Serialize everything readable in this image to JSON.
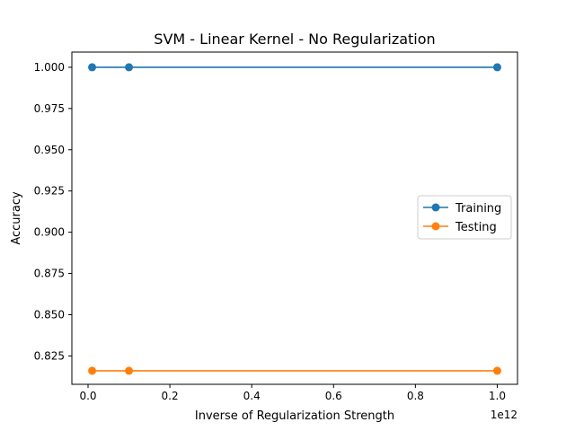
{
  "chart_data": {
    "type": "line",
    "title": "SVM - Linear Kernel - No Regularization",
    "xlabel": "Inverse of Regularization Strength",
    "ylabel": "Accuracy",
    "x_offset_label": "1e12",
    "xlim": [
      -0.0395,
      1.0495
    ],
    "ylim": [
      0.8078,
      1.0092
    ],
    "x_ticks": [
      0.0,
      0.2,
      0.4,
      0.6,
      0.8,
      1.0
    ],
    "x_tick_labels": [
      "0.0",
      "0.2",
      "0.4",
      "0.6",
      "0.8",
      "1.0"
    ],
    "y_ticks": [
      0.825,
      0.85,
      0.875,
      0.9,
      0.925,
      0.95,
      0.975,
      1.0
    ],
    "y_tick_labels": [
      "0.825",
      "0.850",
      "0.875",
      "0.900",
      "0.925",
      "0.950",
      "0.975",
      "1.000"
    ],
    "grid": false,
    "legend_position": "center-right",
    "x": [
      0.01,
      0.1,
      1.0
    ],
    "series": [
      {
        "name": "Training",
        "color": "#1f77b4",
        "values": [
          1.0,
          1.0,
          1.0
        ]
      },
      {
        "name": "Testing",
        "color": "#ff7f0e",
        "values": [
          0.816,
          0.816,
          0.816
        ]
      }
    ]
  }
}
